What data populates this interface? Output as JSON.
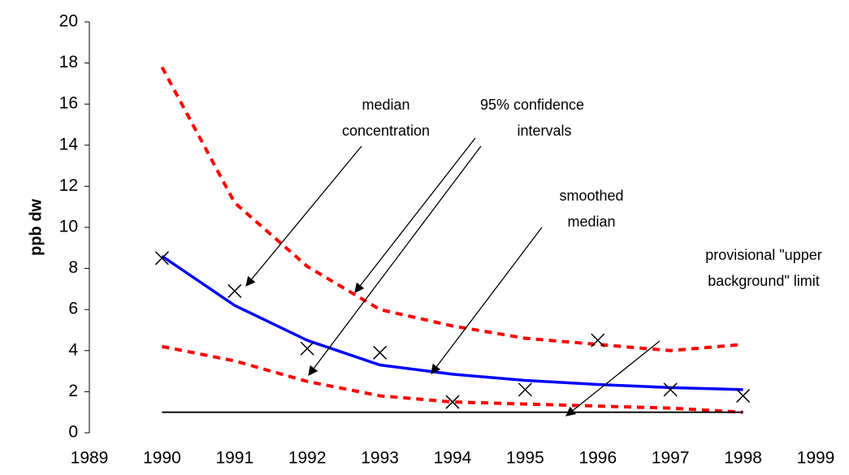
{
  "chart_data": {
    "type": "line",
    "y_label": "ppb dw",
    "x": [
      1990,
      1991,
      1992,
      1993,
      1994,
      1995,
      1996,
      1997,
      1998
    ],
    "xlim": [
      1989,
      1999
    ],
    "xticks": [
      1989,
      1990,
      1991,
      1992,
      1993,
      1994,
      1995,
      1996,
      1997,
      1998,
      1999
    ],
    "ylim": [
      0,
      20
    ],
    "yticks": [
      0,
      2,
      4,
      6,
      8,
      10,
      12,
      14,
      16,
      18,
      20
    ],
    "grid": false,
    "series": [
      {
        "color": "#ff0000",
        "style": "dashed",
        "values": [
          17.8,
          11.2,
          8.1,
          6.0,
          5.2,
          4.6,
          4.3,
          4.0,
          4.3
        ]
      },
      {
        "color": "#ff0000",
        "style": "dashed",
        "values": [
          4.2,
          3.5,
          2.5,
          1.8,
          1.5,
          1.4,
          1.3,
          1.2,
          1.0
        ]
      },
      {
        "color": "#0000ff",
        "style": "solid",
        "values": [
          8.6,
          6.2,
          4.5,
          3.3,
          2.85,
          2.55,
          2.35,
          2.2,
          2.1
        ]
      },
      {
        "color": "#000000",
        "style": "solid",
        "values": [
          1.0,
          1.0,
          1.0,
          1.0,
          1.0,
          1.0,
          1.0,
          1.0,
          1.0
        ]
      },
      {
        "color": "#000000",
        "style": "markers",
        "values": [
          8.5,
          6.9,
          4.1,
          3.9,
          1.5,
          2.1,
          4.5,
          2.1,
          1.8
        ]
      }
    ],
    "annotations": [
      {
        "lines": [
          "median",
          "concentration"
        ]
      },
      {
        "lines": [
          "95% confidence",
          "intervals"
        ]
      },
      {
        "lines": [
          "smoothed",
          "median"
        ]
      },
      {
        "lines": [
          "provisional \"upper",
          "background\" limit"
        ]
      }
    ]
  }
}
